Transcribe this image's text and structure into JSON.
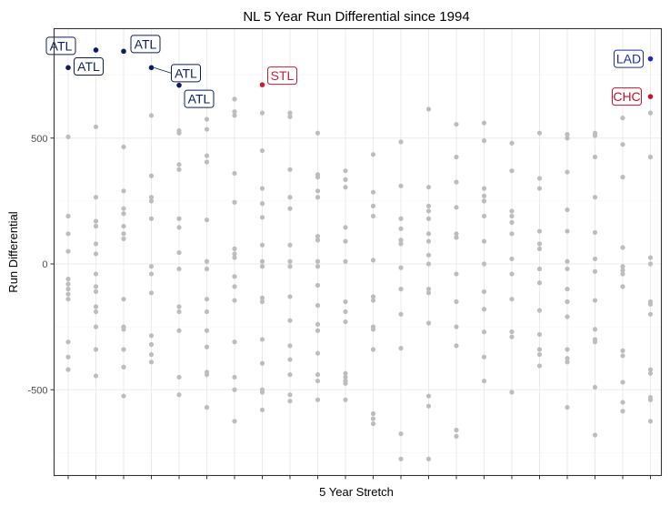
{
  "chart_data": {
    "type": "scatter",
    "title": "NL 5 Year Run Differential since 1994",
    "xlabel": "5 Year Stretch",
    "ylabel": "Run Differential",
    "y_ticks": [
      -500,
      0,
      500
    ],
    "ylim": [
      -850,
      900
    ],
    "x_count": 22,
    "grid": true,
    "point_color": "#bdbdbd",
    "colors": {
      "ATL": "#0c1c5e",
      "STL": "#c41e3a",
      "LAD": "#1a2fb0",
      "CHC": "#c8102e"
    },
    "background_points": [
      [
        1,
        505
      ],
      [
        1,
        190
      ],
      [
        1,
        120
      ],
      [
        1,
        50
      ],
      [
        1,
        -60
      ],
      [
        1,
        -80
      ],
      [
        1,
        -100
      ],
      [
        1,
        -120
      ],
      [
        1,
        -140
      ],
      [
        1,
        -310
      ],
      [
        1,
        -370
      ],
      [
        1,
        -420
      ],
      [
        2,
        545
      ],
      [
        2,
        265
      ],
      [
        2,
        170
      ],
      [
        2,
        150
      ],
      [
        2,
        80
      ],
      [
        2,
        40
      ],
      [
        2,
        -40
      ],
      [
        2,
        -90
      ],
      [
        2,
        -110
      ],
      [
        2,
        -170
      ],
      [
        2,
        -190
      ],
      [
        2,
        -250
      ],
      [
        2,
        -340
      ],
      [
        2,
        -445
      ],
      [
        3,
        465
      ],
      [
        3,
        290
      ],
      [
        3,
        220
      ],
      [
        3,
        200
      ],
      [
        3,
        150
      ],
      [
        3,
        120
      ],
      [
        3,
        100
      ],
      [
        3,
        -140
      ],
      [
        3,
        -250
      ],
      [
        3,
        -260
      ],
      [
        3,
        -340
      ],
      [
        3,
        -410
      ],
      [
        3,
        -525
      ],
      [
        4,
        590
      ],
      [
        4,
        350
      ],
      [
        4,
        265
      ],
      [
        4,
        250
      ],
      [
        4,
        180
      ],
      [
        4,
        -10
      ],
      [
        4,
        -40
      ],
      [
        4,
        -115
      ],
      [
        4,
        -285
      ],
      [
        4,
        -320
      ],
      [
        4,
        -360
      ],
      [
        4,
        -390
      ],
      [
        5,
        530
      ],
      [
        5,
        520
      ],
      [
        5,
        395
      ],
      [
        5,
        375
      ],
      [
        5,
        180
      ],
      [
        5,
        145
      ],
      [
        5,
        45
      ],
      [
        5,
        -20
      ],
      [
        5,
        -170
      ],
      [
        5,
        -190
      ],
      [
        5,
        -265
      ],
      [
        5,
        -450
      ],
      [
        5,
        -520
      ],
      [
        6,
        575
      ],
      [
        6,
        535
      ],
      [
        6,
        430
      ],
      [
        6,
        405
      ],
      [
        6,
        175
      ],
      [
        6,
        10
      ],
      [
        6,
        -20
      ],
      [
        6,
        -140
      ],
      [
        6,
        -190
      ],
      [
        6,
        -265
      ],
      [
        6,
        -330
      ],
      [
        6,
        -430
      ],
      [
        6,
        -440
      ],
      [
        6,
        -570
      ],
      [
        7,
        655
      ],
      [
        7,
        605
      ],
      [
        7,
        590
      ],
      [
        7,
        360
      ],
      [
        7,
        245
      ],
      [
        7,
        60
      ],
      [
        7,
        40
      ],
      [
        7,
        25
      ],
      [
        7,
        -50
      ],
      [
        7,
        -90
      ],
      [
        7,
        -145
      ],
      [
        7,
        -310
      ],
      [
        7,
        -450
      ],
      [
        7,
        -500
      ],
      [
        7,
        -625
      ],
      [
        8,
        600
      ],
      [
        8,
        450
      ],
      [
        8,
        300
      ],
      [
        8,
        240
      ],
      [
        8,
        185
      ],
      [
        8,
        75
      ],
      [
        8,
        10
      ],
      [
        8,
        -10
      ],
      [
        8,
        -135
      ],
      [
        8,
        -150
      ],
      [
        8,
        -300
      ],
      [
        8,
        -395
      ],
      [
        8,
        -500
      ],
      [
        8,
        -510
      ],
      [
        8,
        -580
      ],
      [
        9,
        600
      ],
      [
        9,
        585
      ],
      [
        9,
        375
      ],
      [
        9,
        265
      ],
      [
        9,
        220
      ],
      [
        9,
        75
      ],
      [
        9,
        10
      ],
      [
        9,
        -10
      ],
      [
        9,
        -130
      ],
      [
        9,
        -225
      ],
      [
        9,
        -325
      ],
      [
        9,
        -380
      ],
      [
        9,
        -440
      ],
      [
        9,
        -520
      ],
      [
        9,
        -545
      ],
      [
        10,
        520
      ],
      [
        10,
        355
      ],
      [
        10,
        345
      ],
      [
        10,
        290
      ],
      [
        10,
        265
      ],
      [
        10,
        110
      ],
      [
        10,
        95
      ],
      [
        10,
        10
      ],
      [
        10,
        -10
      ],
      [
        10,
        -85
      ],
      [
        10,
        -165
      ],
      [
        10,
        -240
      ],
      [
        10,
        -265
      ],
      [
        10,
        -355
      ],
      [
        10,
        -440
      ],
      [
        10,
        -465
      ],
      [
        10,
        -540
      ],
      [
        11,
        370
      ],
      [
        11,
        335
      ],
      [
        11,
        305
      ],
      [
        11,
        145
      ],
      [
        11,
        90
      ],
      [
        11,
        10
      ],
      [
        11,
        -150
      ],
      [
        11,
        -190
      ],
      [
        11,
        -230
      ],
      [
        11,
        -435
      ],
      [
        11,
        -450
      ],
      [
        11,
        -465
      ],
      [
        11,
        -475
      ],
      [
        11,
        -540
      ],
      [
        12,
        435
      ],
      [
        12,
        285
      ],
      [
        12,
        230
      ],
      [
        12,
        190
      ],
      [
        12,
        15
      ],
      [
        12,
        -130
      ],
      [
        12,
        -145
      ],
      [
        12,
        -250
      ],
      [
        12,
        -260
      ],
      [
        12,
        -340
      ],
      [
        12,
        -595
      ],
      [
        12,
        -615
      ],
      [
        12,
        -635
      ],
      [
        13,
        485
      ],
      [
        13,
        310
      ],
      [
        13,
        180
      ],
      [
        13,
        140
      ],
      [
        13,
        95
      ],
      [
        13,
        80
      ],
      [
        13,
        -15
      ],
      [
        13,
        -100
      ],
      [
        13,
        -200
      ],
      [
        13,
        -335
      ],
      [
        13,
        -675
      ],
      [
        13,
        -775
      ],
      [
        14,
        615
      ],
      [
        14,
        305
      ],
      [
        14,
        230
      ],
      [
        14,
        210
      ],
      [
        14,
        180
      ],
      [
        14,
        120
      ],
      [
        14,
        90
      ],
      [
        14,
        35
      ],
      [
        14,
        0
      ],
      [
        14,
        -100
      ],
      [
        14,
        -115
      ],
      [
        14,
        -235
      ],
      [
        14,
        -525
      ],
      [
        14,
        -565
      ],
      [
        14,
        -775
      ],
      [
        15,
        555
      ],
      [
        15,
        425
      ],
      [
        15,
        325
      ],
      [
        15,
        225
      ],
      [
        15,
        120
      ],
      [
        15,
        105
      ],
      [
        15,
        -40
      ],
      [
        15,
        -150
      ],
      [
        15,
        -250
      ],
      [
        15,
        -325
      ],
      [
        15,
        -660
      ],
      [
        15,
        -685
      ],
      [
        16,
        560
      ],
      [
        16,
        490
      ],
      [
        16,
        300
      ],
      [
        16,
        270
      ],
      [
        16,
        250
      ],
      [
        16,
        190
      ],
      [
        16,
        90
      ],
      [
        16,
        0
      ],
      [
        16,
        -110
      ],
      [
        16,
        -180
      ],
      [
        16,
        -270
      ],
      [
        16,
        -370
      ],
      [
        16,
        -465
      ],
      [
        17,
        480
      ],
      [
        17,
        370
      ],
      [
        17,
        210
      ],
      [
        17,
        190
      ],
      [
        17,
        165
      ],
      [
        17,
        120
      ],
      [
        17,
        20
      ],
      [
        17,
        -40
      ],
      [
        17,
        -140
      ],
      [
        17,
        -270
      ],
      [
        17,
        -290
      ],
      [
        17,
        -510
      ],
      [
        18,
        520
      ],
      [
        18,
        340
      ],
      [
        18,
        300
      ],
      [
        18,
        130
      ],
      [
        18,
        80
      ],
      [
        18,
        60
      ],
      [
        18,
        -20
      ],
      [
        18,
        -75
      ],
      [
        18,
        -185
      ],
      [
        18,
        -280
      ],
      [
        18,
        -340
      ],
      [
        18,
        -360
      ],
      [
        18,
        -405
      ],
      [
        19,
        515
      ],
      [
        19,
        500
      ],
      [
        19,
        365
      ],
      [
        19,
        215
      ],
      [
        19,
        130
      ],
      [
        19,
        10
      ],
      [
        19,
        -20
      ],
      [
        19,
        -100
      ],
      [
        19,
        -150
      ],
      [
        19,
        -210
      ],
      [
        19,
        -340
      ],
      [
        19,
        -375
      ],
      [
        19,
        -390
      ],
      [
        19,
        -570
      ],
      [
        20,
        520
      ],
      [
        20,
        510
      ],
      [
        20,
        425
      ],
      [
        20,
        265
      ],
      [
        20,
        125
      ],
      [
        20,
        20
      ],
      [
        20,
        -30
      ],
      [
        20,
        -145
      ],
      [
        20,
        -260
      ],
      [
        20,
        -300
      ],
      [
        20,
        -310
      ],
      [
        20,
        -490
      ],
      [
        20,
        -680
      ],
      [
        21,
        580
      ],
      [
        21,
        475
      ],
      [
        21,
        345
      ],
      [
        21,
        65
      ],
      [
        21,
        -10
      ],
      [
        21,
        -25
      ],
      [
        21,
        -40
      ],
      [
        21,
        -90
      ],
      [
        21,
        -345
      ],
      [
        21,
        -365
      ],
      [
        21,
        -470
      ],
      [
        21,
        -550
      ],
      [
        21,
        -585
      ],
      [
        22,
        600
      ],
      [
        22,
        425
      ],
      [
        22,
        25
      ],
      [
        22,
        0
      ],
      [
        22,
        -150
      ],
      [
        22,
        -160
      ],
      [
        22,
        -200
      ],
      [
        22,
        -420
      ],
      [
        22,
        -435
      ],
      [
        22,
        -530
      ],
      [
        22,
        -540
      ],
      [
        22,
        -625
      ]
    ],
    "highlights": [
      {
        "x": 1,
        "y": 780,
        "label": "ATL",
        "team": "ATL"
      },
      {
        "x": 2,
        "y": 850,
        "label": "ATL",
        "team": "ATL"
      },
      {
        "x": 3,
        "y": 845,
        "label": "ATL",
        "team": "ATL"
      },
      {
        "x": 4,
        "y": 780,
        "label": "ATL",
        "team": "ATL"
      },
      {
        "x": 5,
        "y": 710,
        "label": "ATL",
        "team": "ATL"
      },
      {
        "x": 8,
        "y": 712,
        "label": "STL",
        "team": "STL"
      },
      {
        "x": 22,
        "y": 815,
        "label": "LAD",
        "team": "LAD"
      },
      {
        "x": 22,
        "y": 665,
        "label": "CHC",
        "team": "CHC"
      }
    ]
  }
}
